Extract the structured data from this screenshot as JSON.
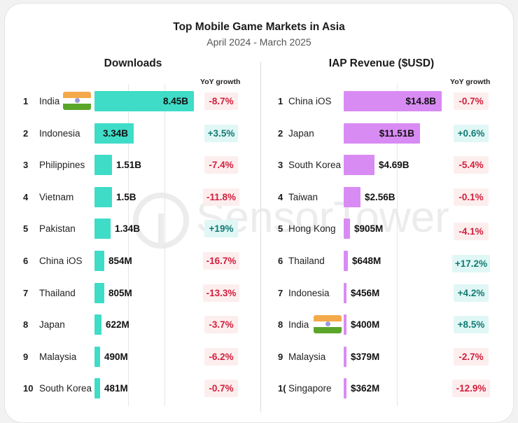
{
  "header": {
    "title": "Top Mobile Game Markets in Asia",
    "subtitle": "April 2024 - March 2025"
  },
  "watermark": {
    "text": "SensorTower",
    "icon": "sensor-tower-logo-icon"
  },
  "colors": {
    "downloads_bar": "#3fdcc8",
    "revenue_bar": "#d98bf4",
    "negative_text": "#d21f3c",
    "negative_bg": "#fdeeee",
    "positive_text": "#127a72",
    "positive_bg": "#e0f7f6"
  },
  "downloads": {
    "title": "Downloads",
    "yoy_label": "YoY  growth",
    "rows": [
      {
        "rank": "1",
        "name": "India",
        "value": "8.45B",
        "yoy": "-8.7%",
        "flag": "india-flag-icon"
      },
      {
        "rank": "2",
        "name": "Indonesia",
        "value": "3.34B",
        "yoy": "+3.5%"
      },
      {
        "rank": "3",
        "name": "Philippines",
        "value": "1.51B",
        "yoy": "-7.4%"
      },
      {
        "rank": "4",
        "name": "Vietnam",
        "value": "1.5B",
        "yoy": "-11.8%"
      },
      {
        "rank": "5",
        "name": "Pakistan",
        "value": "1.34B",
        "yoy": "+19%"
      },
      {
        "rank": "6",
        "name": "China iOS",
        "value": "854M",
        "yoy": "-16.7%"
      },
      {
        "rank": "7",
        "name": "Thailand",
        "value": "805M",
        "yoy": "-13.3%"
      },
      {
        "rank": "8",
        "name": "Japan",
        "value": "622M",
        "yoy": "-3.7%"
      },
      {
        "rank": "9",
        "name": "Malaysia",
        "value": "490M",
        "yoy": "-6.2%"
      },
      {
        "rank": "10",
        "name": "South Korea",
        "value": "481M",
        "yoy": "-0.7%"
      }
    ]
  },
  "revenue": {
    "title": "IAP Revenue ($USD)",
    "yoy_label": "YoY  growth",
    "rows": [
      {
        "rank": "1",
        "name": "China iOS",
        "value": "$14.8B",
        "yoy": "-0.7%"
      },
      {
        "rank": "2",
        "name": "Japan",
        "value": "$11.51B",
        "yoy": "+0.6%"
      },
      {
        "rank": "3",
        "name": "South Korea",
        "value": "$4.69B",
        "yoy": "-5.4%"
      },
      {
        "rank": "4",
        "name": "Taiwan",
        "value": "$2.56B",
        "yoy": "-0.1%"
      },
      {
        "rank": "5",
        "name": "Hong Kong",
        "value": "$905M",
        "yoy": "-4.1%"
      },
      {
        "rank": "6",
        "name": "Thailand",
        "value": "$648M",
        "yoy": "+17.2%"
      },
      {
        "rank": "7",
        "name": "Indonesia",
        "value": "$456M",
        "yoy": "+4.2%"
      },
      {
        "rank": "8",
        "name": "India",
        "value": "$400M",
        "yoy": "+8.5%",
        "flag": "india-flag-icon"
      },
      {
        "rank": "9",
        "name": "Malaysia",
        "value": "$379M",
        "yoy": "-2.7%"
      },
      {
        "rank": "1(",
        "name": "Singapore",
        "value": "$362M",
        "yoy": "-12.9%"
      }
    ]
  },
  "chart_data": [
    {
      "type": "bar",
      "orientation": "horizontal",
      "title": "Downloads",
      "subtitle": "Top Mobile Game Markets in Asia, April 2024 - March 2025",
      "categories": [
        "India",
        "Indonesia",
        "Philippines",
        "Vietnam",
        "Pakistan",
        "China iOS",
        "Thailand",
        "Japan",
        "Malaysia",
        "South Korea"
      ],
      "values": [
        8450,
        3340,
        1510,
        1500,
        1340,
        854,
        805,
        622,
        490,
        481
      ],
      "value_labels": [
        "8.45B",
        "3.34B",
        "1.51B",
        "1.5B",
        "1.34B",
        "854M",
        "805M",
        "622M",
        "490M",
        "481M"
      ],
      "unit": "millions of downloads",
      "yoy_growth_pct": [
        -8.7,
        3.5,
        -7.4,
        -11.8,
        19,
        -16.7,
        -13.3,
        -3.7,
        -6.2,
        -0.7
      ],
      "yoy_label": "YoY growth",
      "grid": true,
      "color": "#3fdcc8"
    },
    {
      "type": "bar",
      "orientation": "horizontal",
      "title": "IAP Revenue ($USD)",
      "subtitle": "Top Mobile Game Markets in Asia, April 2024 - March 2025",
      "categories": [
        "China iOS",
        "Japan",
        "South Korea",
        "Taiwan",
        "Hong Kong",
        "Thailand",
        "Indonesia",
        "India",
        "Malaysia",
        "Singapore"
      ],
      "values": [
        14800,
        11510,
        4690,
        2560,
        905,
        648,
        456,
        400,
        379,
        362
      ],
      "value_labels": [
        "$14.8B",
        "$11.51B",
        "$4.69B",
        "$2.56B",
        "$905M",
        "$648M",
        "$456M",
        "$400M",
        "$379M",
        "$362M"
      ],
      "unit": "millions USD",
      "yoy_growth_pct": [
        -0.7,
        0.6,
        -5.4,
        -0.1,
        -4.1,
        17.2,
        4.2,
        8.5,
        -2.7,
        -12.9
      ],
      "yoy_label": "YoY growth",
      "grid": true,
      "color": "#d98bf4"
    }
  ]
}
